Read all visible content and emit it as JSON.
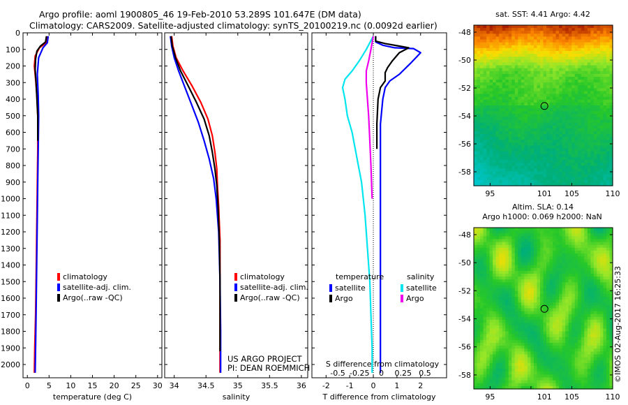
{
  "header": {
    "title_line1": "Argo profile: aoml 1900805_46 19-Feb-2010 53.289S 101.647E (DM data)",
    "title_line2": "Climatology: CARS2009. Satellite-adjusted climatology: synTS_20100219.nc (0.0092d earlier)"
  },
  "credits": {
    "project": "US ARGO PROJECT",
    "pi": "PI: DEAN ROEMMICH",
    "imos": "©IMOS 02-Aug-2017 16:25:33"
  },
  "colors": {
    "climatology": "#ff0000",
    "satellite_adj": "#0000ff",
    "argo": "#000000",
    "salinity_satellite": "#00e5ee",
    "salinity_argo": "#ee00ee"
  },
  "chart_data": [
    {
      "type": "line",
      "id": "temperature",
      "xlabel": "temperature (deg C)",
      "ylabel": "",
      "xlim": [
        -1,
        31
      ],
      "ylim": [
        2080,
        0
      ],
      "xticks": [
        0,
        5,
        10,
        15,
        20,
        25,
        30
      ],
      "yticks": [
        0,
        100,
        200,
        300,
        400,
        500,
        600,
        700,
        800,
        900,
        1000,
        1100,
        1200,
        1300,
        1400,
        1500,
        1600,
        1700,
        1800,
        1900,
        2000
      ],
      "legend": [
        {
          "label": "climatology",
          "color": "#ff0000"
        },
        {
          "label": "satellite-adj. clim.",
          "color": "#0000ff"
        },
        {
          "label": "Argo(..raw -QC)",
          "color": "#000000"
        }
      ],
      "series": [
        {
          "name": "climatology",
          "color": "#ff0000",
          "points": [
            [
              4.6,
              20
            ],
            [
              4.3,
              60
            ],
            [
              2.8,
              90
            ],
            [
              1.8,
              140
            ],
            [
              1.6,
              200
            ],
            [
              1.9,
              280
            ],
            [
              2.2,
              380
            ],
            [
              2.4,
              500
            ],
            [
              2.4,
              700
            ],
            [
              2.3,
              900
            ],
            [
              2.2,
              1100
            ],
            [
              2.1,
              1300
            ],
            [
              2.0,
              1500
            ],
            [
              1.9,
              1700
            ],
            [
              1.7,
              1900
            ],
            [
              1.6,
              2050
            ]
          ]
        },
        {
          "name": "satellite-adj. clim.",
          "color": "#0000ff",
          "points": [
            [
              4.8,
              20
            ],
            [
              4.6,
              60
            ],
            [
              3.6,
              90
            ],
            [
              2.6,
              150
            ],
            [
              2.3,
              250
            ],
            [
              2.5,
              380
            ],
            [
              2.6,
              500
            ],
            [
              2.5,
              700
            ],
            [
              2.4,
              900
            ],
            [
              2.3,
              1100
            ],
            [
              2.2,
              1300
            ],
            [
              2.1,
              1500
            ],
            [
              2.0,
              1700
            ],
            [
              1.9,
              1900
            ],
            [
              1.8,
              2050
            ]
          ]
        },
        {
          "name": "Argo(..raw -QC)",
          "color": "#000000",
          "points": [
            [
              4.4,
              20
            ],
            [
              4.2,
              55
            ],
            [
              3.0,
              80
            ],
            [
              2.2,
              110
            ],
            [
              1.9,
              160
            ],
            [
              1.8,
              220
            ],
            [
              2.0,
              300
            ],
            [
              2.2,
              400
            ],
            [
              2.4,
              500
            ],
            [
              2.4,
              650
            ]
          ]
        }
      ]
    },
    {
      "type": "line",
      "id": "salinity",
      "xlabel": "salinity",
      "ylabel": "",
      "xlim": [
        33.85,
        36.1
      ],
      "ylim": [
        2080,
        0
      ],
      "xticks": [
        34,
        34.5,
        35,
        35.5,
        36
      ],
      "xtick_labels": [
        "34",
        "34.5",
        "35",
        "35.5",
        "36"
      ],
      "legend": [
        {
          "label": "climatology",
          "color": "#ff0000"
        },
        {
          "label": "satellite-adj. clim.",
          "color": "#0000ff"
        },
        {
          "label": "Argo(..raw -QC)",
          "color": "#000000"
        }
      ],
      "series": [
        {
          "name": "climatology",
          "color": "#ff0000",
          "points": [
            [
              33.96,
              20
            ],
            [
              33.98,
              80
            ],
            [
              34.03,
              150
            ],
            [
              34.14,
              230
            ],
            [
              34.28,
              320
            ],
            [
              34.42,
              420
            ],
            [
              34.53,
              520
            ],
            [
              34.6,
              620
            ],
            [
              34.64,
              720
            ],
            [
              34.67,
              820
            ],
            [
              34.68,
              920
            ],
            [
              34.7,
              1050
            ],
            [
              34.72,
              1250
            ],
            [
              34.72,
              1500
            ],
            [
              34.72,
              1800
            ],
            [
              34.72,
              2050
            ]
          ]
        },
        {
          "name": "satellite-adj. clim.",
          "color": "#0000ff",
          "points": [
            [
              33.94,
              20
            ],
            [
              33.96,
              80
            ],
            [
              34.0,
              150
            ],
            [
              34.07,
              230
            ],
            [
              34.16,
              320
            ],
            [
              34.27,
              430
            ],
            [
              34.38,
              540
            ],
            [
              34.47,
              650
            ],
            [
              34.55,
              760
            ],
            [
              34.62,
              880
            ],
            [
              34.66,
              1000
            ],
            [
              34.7,
              1200
            ],
            [
              34.72,
              1500
            ],
            [
              34.73,
              1800
            ],
            [
              34.73,
              2050
            ]
          ]
        },
        {
          "name": "Argo(..raw -QC)",
          "color": "#000000",
          "points": [
            [
              33.95,
              20
            ],
            [
              33.97,
              80
            ],
            [
              34.02,
              150
            ],
            [
              34.1,
              230
            ],
            [
              34.22,
              320
            ],
            [
              34.35,
              420
            ],
            [
              34.47,
              520
            ],
            [
              34.55,
              620
            ],
            [
              34.6,
              720
            ],
            [
              34.64,
              820
            ],
            [
              34.67,
              920
            ],
            [
              34.69,
              1050
            ],
            [
              34.71,
              1250
            ],
            [
              34.72,
              1500
            ],
            [
              34.72,
              1800
            ],
            [
              34.72,
              1920
            ]
          ]
        }
      ]
    },
    {
      "type": "line",
      "id": "difference",
      "xlabel": "T difference from climatology",
      "xlabel2": "S difference from climatology",
      "xlim": [
        -2.6,
        3.1
      ],
      "ylim": [
        2080,
        0
      ],
      "xticks": [
        -2,
        -1,
        0,
        1,
        2
      ],
      "xticks_top": [
        -0.5,
        -0.25,
        0,
        0.25,
        0.5
      ],
      "xticks_top_labels": [
        "-0.5",
        "-0.25",
        "0",
        "0.25",
        "0.5"
      ],
      "legend_temperature_title": "temperature",
      "legend_salinity_title": "salinity",
      "legend": [
        {
          "label": "satellite",
          "color": "#0000ff",
          "group": "temperature"
        },
        {
          "label": "Argo",
          "color": "#000000",
          "group": "temperature"
        },
        {
          "label": "satellite",
          "color": "#00e5ee",
          "group": "salinity"
        },
        {
          "label": "Argo",
          "color": "#ee00ee",
          "group": "salinity"
        }
      ],
      "series": [
        {
          "name": "temperature satellite",
          "color": "#0000ff",
          "points": [
            [
              0.1,
              20
            ],
            [
              0.1,
              55
            ],
            [
              0.4,
              75
            ],
            [
              0.9,
              90
            ],
            [
              1.7,
              95
            ],
            [
              2.0,
              120
            ],
            [
              1.6,
              180
            ],
            [
              1.1,
              250
            ],
            [
              0.7,
              290
            ],
            [
              0.5,
              330
            ],
            [
              0.4,
              400
            ],
            [
              0.3,
              550
            ],
            [
              0.3,
              800
            ],
            [
              0.3,
              1100
            ],
            [
              0.3,
              1500
            ],
            [
              0.3,
              1900
            ],
            [
              0.3,
              2050
            ]
          ]
        },
        {
          "name": "temperature Argo",
          "color": "#000000",
          "points": [
            [
              0.1,
              20
            ],
            [
              0.1,
              50
            ],
            [
              0.5,
              65
            ],
            [
              1.1,
              80
            ],
            [
              1.5,
              90
            ],
            [
              1.1,
              120
            ],
            [
              0.8,
              170
            ],
            [
              0.6,
              210
            ],
            [
              0.5,
              240
            ],
            [
              0.5,
              290
            ],
            [
              0.3,
              330
            ],
            [
              0.2,
              400
            ],
            [
              0.15,
              550
            ],
            [
              0.15,
              700
            ]
          ]
        },
        {
          "name": "salinity satellite",
          "color": "#00e5ee",
          "points": [
            [
              0,
              20
            ],
            [
              -0.3,
              100
            ],
            [
              -0.6,
              170
            ],
            [
              -0.9,
              230
            ],
            [
              -1.2,
              280
            ],
            [
              -1.3,
              330
            ],
            [
              -1.2,
              400
            ],
            [
              -1.1,
              500
            ],
            [
              -0.9,
              600
            ],
            [
              -0.7,
              750
            ],
            [
              -0.5,
              900
            ],
            [
              -0.35,
              1100
            ],
            [
              -0.25,
              1300
            ],
            [
              -0.15,
              1500
            ],
            [
              -0.1,
              1700
            ],
            [
              -0.05,
              1900
            ],
            [
              -0.05,
              2050
            ]
          ]
        },
        {
          "name": "salinity Argo",
          "color": "#ee00ee",
          "points": [
            [
              0,
              20
            ],
            [
              -0.1,
              100
            ],
            [
              -0.2,
              170
            ],
            [
              -0.3,
              230
            ],
            [
              -0.3,
              300
            ],
            [
              -0.25,
              400
            ],
            [
              -0.2,
              500
            ],
            [
              -0.15,
              650
            ],
            [
              -0.1,
              800
            ],
            [
              -0.05,
              1000
            ]
          ]
        }
      ]
    },
    {
      "type": "heatmap",
      "id": "sst_map",
      "title": "sat. SST: 4.41  Argo: 4.42",
      "xlim": [
        93,
        110
      ],
      "ylim": [
        -59,
        -47.5
      ],
      "xticks": [
        95,
        100,
        105,
        110
      ],
      "xtick_labels": [
        "95",
        "",
        "105",
        "110"
      ],
      "xtick_extra": {
        "value": 101.647,
        "label": "101"
      },
      "yticks": [
        -48,
        -50,
        -52,
        -54,
        -56,
        -58
      ],
      "marker": [
        101.647,
        -53.289
      ]
    },
    {
      "type": "heatmap",
      "id": "sla_map",
      "title": "Altim. SLA: 0.14",
      "subtitle": "Argo h1000: 0.069 h2000: NaN",
      "xlim": [
        93,
        110
      ],
      "ylim": [
        -59,
        -47.5
      ],
      "xticks": [
        95,
        100,
        105,
        110
      ],
      "xtick_labels": [
        "95",
        "",
        "105",
        "110"
      ],
      "xtick_extra": {
        "value": 101.647,
        "label": "101"
      },
      "yticks": [
        -48,
        -50,
        -52,
        -54,
        -56,
        -58
      ],
      "marker": [
        101.647,
        -53.289
      ]
    }
  ]
}
